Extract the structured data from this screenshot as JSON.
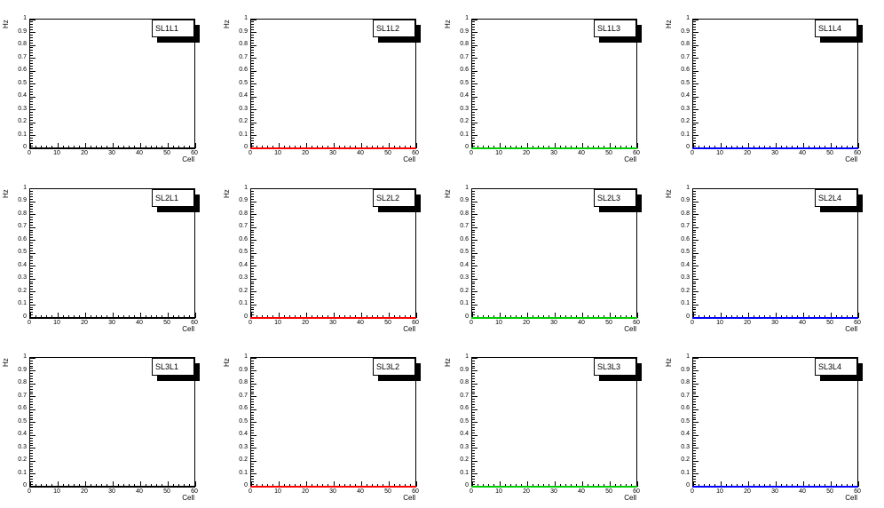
{
  "canvas": {
    "background": "#ffffff",
    "grid_rows": 3,
    "grid_cols": 4
  },
  "axes": {
    "x": {
      "title": "Cell",
      "min": 0,
      "max": 60,
      "major_ticks": [
        0,
        10,
        20,
        30,
        40,
        50,
        60
      ],
      "major_tick_labels": [
        "0",
        "10",
        "20",
        "30",
        "40",
        "50",
        "60"
      ],
      "minors_per_major": 5
    },
    "y": {
      "title": "Hz",
      "min": 0,
      "max": 1,
      "major_ticks": [
        0,
        0.1,
        0.2,
        0.3,
        0.4,
        0.5,
        0.6,
        0.7,
        0.8,
        0.9,
        1
      ],
      "major_tick_labels": [
        "0",
        "0.1",
        "0.2",
        "0.3",
        "0.4",
        "0.5",
        "0.6",
        "0.7",
        "0.8",
        "0.9",
        "1"
      ],
      "minors_per_major": 5
    }
  },
  "chart_data": [
    {
      "type": "line",
      "title": "SL1L1",
      "xlabel": "Cell",
      "ylabel": "Hz",
      "xlim": [
        0,
        60
      ],
      "ylim": [
        0,
        1
      ],
      "grid": false,
      "legend": false,
      "series": [
        {
          "name": "SL1L1",
          "color": "#000000",
          "x": [
            0,
            60
          ],
          "y": [
            0,
            0
          ]
        }
      ]
    },
    {
      "type": "line",
      "title": "SL1L2",
      "xlabel": "Cell",
      "ylabel": "Hz",
      "xlim": [
        0,
        60
      ],
      "ylim": [
        0,
        1
      ],
      "grid": false,
      "legend": false,
      "series": [
        {
          "name": "SL1L2",
          "color": "#ff0000",
          "x": [
            0,
            60
          ],
          "y": [
            0,
            0
          ]
        }
      ]
    },
    {
      "type": "line",
      "title": "SL1L3",
      "xlabel": "Cell",
      "ylabel": "Hz",
      "xlim": [
        0,
        60
      ],
      "ylim": [
        0,
        1
      ],
      "grid": false,
      "legend": false,
      "series": [
        {
          "name": "SL1L3",
          "color": "#00cc00",
          "x": [
            0,
            60
          ],
          "y": [
            0,
            0
          ]
        }
      ]
    },
    {
      "type": "line",
      "title": "SL1L4",
      "xlabel": "Cell",
      "ylabel": "Hz",
      "xlim": [
        0,
        60
      ],
      "ylim": [
        0,
        1
      ],
      "grid": false,
      "legend": false,
      "series": [
        {
          "name": "SL1L4",
          "color": "#0000ff",
          "x": [
            0,
            60
          ],
          "y": [
            0,
            0
          ]
        }
      ]
    },
    {
      "type": "line",
      "title": "SL2L1",
      "xlabel": "Cell",
      "ylabel": "Hz",
      "xlim": [
        0,
        60
      ],
      "ylim": [
        0,
        1
      ],
      "grid": false,
      "legend": false,
      "series": [
        {
          "name": "SL2L1",
          "color": "#000000",
          "x": [
            0,
            60
          ],
          "y": [
            0,
            0
          ]
        }
      ]
    },
    {
      "type": "line",
      "title": "SL2L2",
      "xlabel": "Cell",
      "ylabel": "Hz",
      "xlim": [
        0,
        60
      ],
      "ylim": [
        0,
        1
      ],
      "grid": false,
      "legend": false,
      "series": [
        {
          "name": "SL2L2",
          "color": "#ff0000",
          "x": [
            0,
            60
          ],
          "y": [
            0,
            0
          ]
        }
      ]
    },
    {
      "type": "line",
      "title": "SL2L3",
      "xlabel": "Cell",
      "ylabel": "Hz",
      "xlim": [
        0,
        60
      ],
      "ylim": [
        0,
        1
      ],
      "grid": false,
      "legend": false,
      "series": [
        {
          "name": "SL2L3",
          "color": "#00cc00",
          "x": [
            0,
            60
          ],
          "y": [
            0,
            0
          ]
        }
      ]
    },
    {
      "type": "line",
      "title": "SL2L4",
      "xlabel": "Cell",
      "ylabel": "Hz",
      "xlim": [
        0,
        60
      ],
      "ylim": [
        0,
        1
      ],
      "grid": false,
      "legend": false,
      "series": [
        {
          "name": "SL2L4",
          "color": "#0000ff",
          "x": [
            0,
            60
          ],
          "y": [
            0,
            0
          ]
        }
      ]
    },
    {
      "type": "line",
      "title": "SL3L1",
      "xlabel": "Cell",
      "ylabel": "Hz",
      "xlim": [
        0,
        60
      ],
      "ylim": [
        0,
        1
      ],
      "grid": false,
      "legend": false,
      "series": [
        {
          "name": "SL3L1",
          "color": "#000000",
          "x": [
            0,
            60
          ],
          "y": [
            0,
            0
          ]
        }
      ]
    },
    {
      "type": "line",
      "title": "SL3L2",
      "xlabel": "Cell",
      "ylabel": "Hz",
      "xlim": [
        0,
        60
      ],
      "ylim": [
        0,
        1
      ],
      "grid": false,
      "legend": false,
      "series": [
        {
          "name": "SL3L2",
          "color": "#ff0000",
          "x": [
            0,
            60
          ],
          "y": [
            0,
            0
          ]
        }
      ]
    },
    {
      "type": "line",
      "title": "SL3L3",
      "xlabel": "Cell",
      "ylabel": "Hz",
      "xlim": [
        0,
        60
      ],
      "ylim": [
        0,
        1
      ],
      "grid": false,
      "legend": false,
      "series": [
        {
          "name": "SL3L3",
          "color": "#00cc00",
          "x": [
            0,
            60
          ],
          "y": [
            0,
            0
          ]
        }
      ]
    },
    {
      "type": "line",
      "title": "SL3L4",
      "xlabel": "Cell",
      "ylabel": "Hz",
      "xlim": [
        0,
        60
      ],
      "ylim": [
        0,
        1
      ],
      "grid": false,
      "legend": false,
      "series": [
        {
          "name": "SL3L4",
          "color": "#0000ff",
          "x": [
            0,
            60
          ],
          "y": [
            0,
            0
          ]
        }
      ]
    }
  ]
}
